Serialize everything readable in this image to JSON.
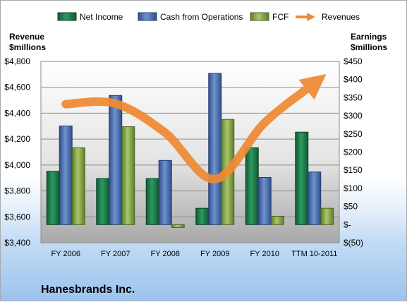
{
  "chart_data": {
    "type": "bar",
    "title": "Hanesbrands Inc.",
    "categories": [
      "FY 2006",
      "FY 2007",
      "FY 2008",
      "FY 2009",
      "FY 2010",
      "TTM 10-2011"
    ],
    "series": [
      {
        "name": "Net Income",
        "axis": "right",
        "color": "#1f7a4a",
        "values": [
          147,
          127,
          127,
          45,
          212,
          255
        ]
      },
      {
        "name": "Cash from Operations",
        "axis": "right",
        "color": "#4a6fb0",
        "values": [
          272,
          356,
          177,
          417,
          130,
          145
        ]
      },
      {
        "name": "FCF",
        "axis": "right",
        "color": "#86a848",
        "values": [
          212,
          270,
          -8,
          290,
          23,
          45
        ]
      },
      {
        "name": "Revenues",
        "axis": "left",
        "type": "line",
        "color": "#ef8a34",
        "values": [
          4470,
          4474,
          4249,
          3891,
          4327,
          4630
        ]
      }
    ],
    "left_axis": {
      "label_line1": "Revenue",
      "label_line2": "$millions",
      "min": 3400,
      "max": 4800,
      "ticks": [
        "$3,400",
        "$3,600",
        "$3,800",
        "$4,000",
        "$4,200",
        "$4,400",
        "$4,600",
        "$4,800"
      ]
    },
    "right_axis": {
      "label_line1": "Earnings",
      "label_line2": "$millions",
      "min": -50,
      "max": 450,
      "ticks": [
        "$(50)",
        "$-",
        "$50",
        "$100",
        "$150",
        "$200",
        "$250",
        "$300",
        "$350",
        "$400",
        "$450"
      ]
    },
    "legend_position": "top",
    "grid": true
  }
}
